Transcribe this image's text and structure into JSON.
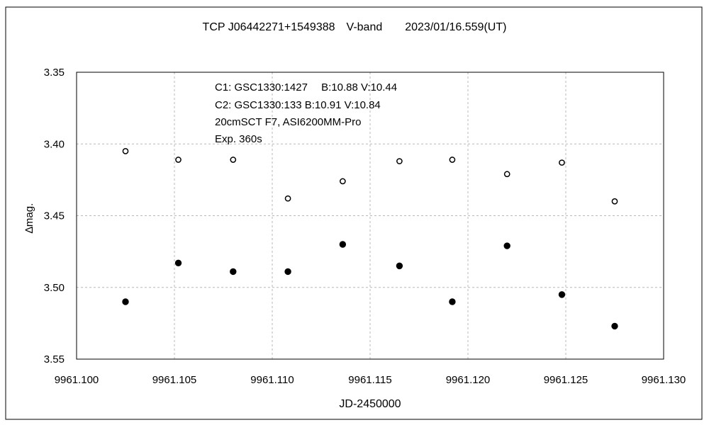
{
  "chart_data": {
    "type": "scatter",
    "title": "TCP J06442271+1549388　V-band　　2023/01/16.559(UT)",
    "xlabel": "JD-2450000",
    "ylabel": "∆mag.",
    "xlim": [
      9961.1,
      9961.13
    ],
    "ylim": [
      3.35,
      3.55
    ],
    "y_inverted": true,
    "grid": true,
    "x_ticks": [
      "9961.100",
      "9961.105",
      "9961.110",
      "9961.115",
      "9961.120",
      "9961.125",
      "9961.130"
    ],
    "y_ticks": [
      "3.35",
      "3.40",
      "3.45",
      "3.50",
      "3.55"
    ],
    "annotations": [
      "C1: GSC1330:1427　 B:10.88  V:10.44",
      "C2: GSC1330:133  B:10.91  V:10.84",
      "20cmSCT F7,  ASI6200MM-Pro",
      "Exp. 360s"
    ],
    "series": [
      {
        "marker": "open-circle",
        "x": [
          9961.1025,
          9961.1052,
          9961.108,
          9961.1108,
          9961.1136,
          9961.1165,
          9961.1192,
          9961.122,
          9961.1248,
          9961.1275
        ],
        "y": [
          3.405,
          3.411,
          3.411,
          3.438,
          3.426,
          3.412,
          3.411,
          3.421,
          3.413,
          3.44
        ]
      },
      {
        "marker": "filled-circle",
        "x": [
          9961.1025,
          9961.1052,
          9961.108,
          9961.1108,
          9961.1136,
          9961.1165,
          9961.1192,
          9961.122,
          9961.1248,
          9961.1275
        ],
        "y": [
          3.51,
          3.483,
          3.489,
          3.489,
          3.47,
          3.485,
          3.51,
          3.471,
          3.505,
          3.527
        ]
      }
    ]
  }
}
